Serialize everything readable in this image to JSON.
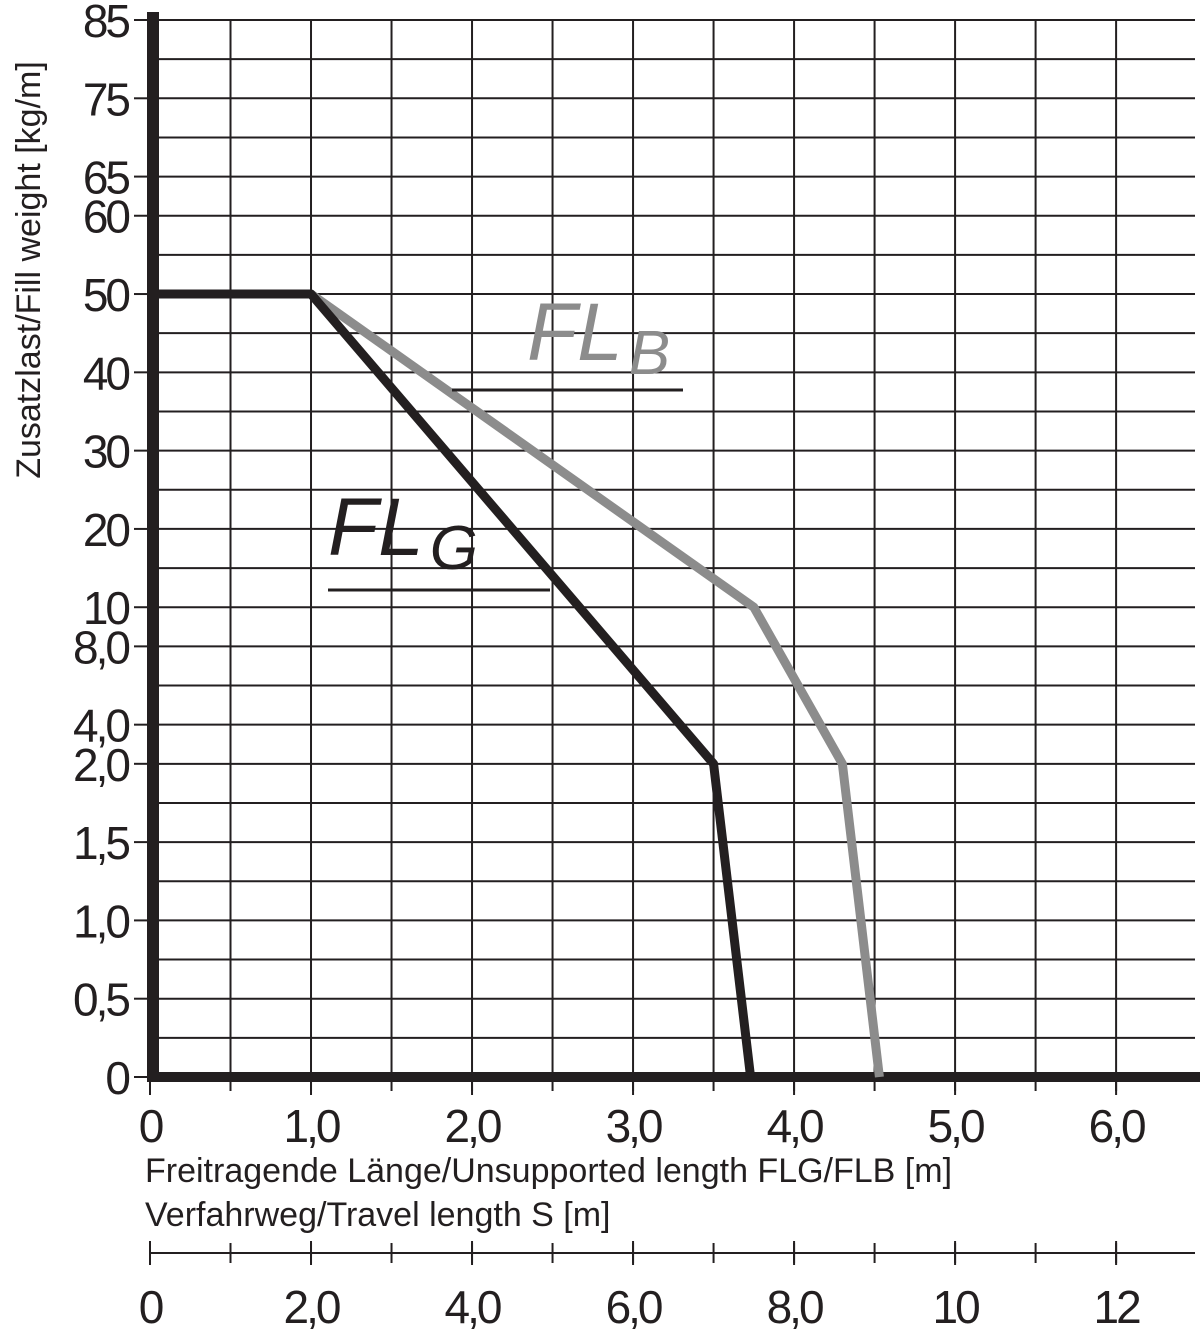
{
  "chart_data": {
    "type": "line",
    "y_label": "Zusatzlast/Fill weight [kg/m]",
    "x_label": "Freitragende Länge/Unsupported length FLG/FLB [m]",
    "x2_label": "Verfahrweg/Travel length S [m]",
    "xlim": [
      0,
      6.49
    ],
    "xticks": [
      0,
      {
        "value": 1,
        "label": "1,0"
      },
      {
        "value": 2,
        "label": "2,0"
      },
      {
        "value": 3,
        "label": "3,0"
      },
      {
        "value": 4,
        "label": "4,0"
      },
      {
        "value": 5,
        "label": "5,0"
      },
      {
        "value": 6,
        "label": "6,0"
      }
    ],
    "x2lim": [
      0,
      12.98
    ],
    "x2ticks": [
      0,
      {
        "value": 2,
        "label": "2,0"
      },
      {
        "value": 4,
        "label": "4,0"
      },
      {
        "value": 6,
        "label": "6,0"
      },
      {
        "value": 8,
        "label": "8,0"
      },
      10,
      12
    ],
    "ylim": [
      0,
      85
    ],
    "yticks": [
      0,
      {
        "value": 0.5,
        "label": "0,5"
      },
      {
        "value": 1,
        "label": "1,0"
      },
      {
        "value": 1.5,
        "label": "1,5"
      },
      {
        "value": 2,
        "label": "2,0"
      },
      {
        "value": 4,
        "label": "4,0"
      },
      {
        "value": 8,
        "label": "8,0"
      },
      10,
      20,
      30,
      40,
      50,
      60,
      65,
      75,
      85
    ],
    "grid": true,
    "series": [
      {
        "name": "FL",
        "subscript": "B",
        "color": "#8c8c8c",
        "x": [
          1,
          3.75,
          4.3,
          4.53
        ],
        "values": [
          50,
          10,
          2,
          0
        ]
      },
      {
        "name": "FL",
        "subscript": "G",
        "color": "#231f20",
        "x": [
          0,
          1,
          3.5,
          3.73
        ],
        "values": [
          50,
          50,
          2,
          0
        ]
      }
    ]
  }
}
